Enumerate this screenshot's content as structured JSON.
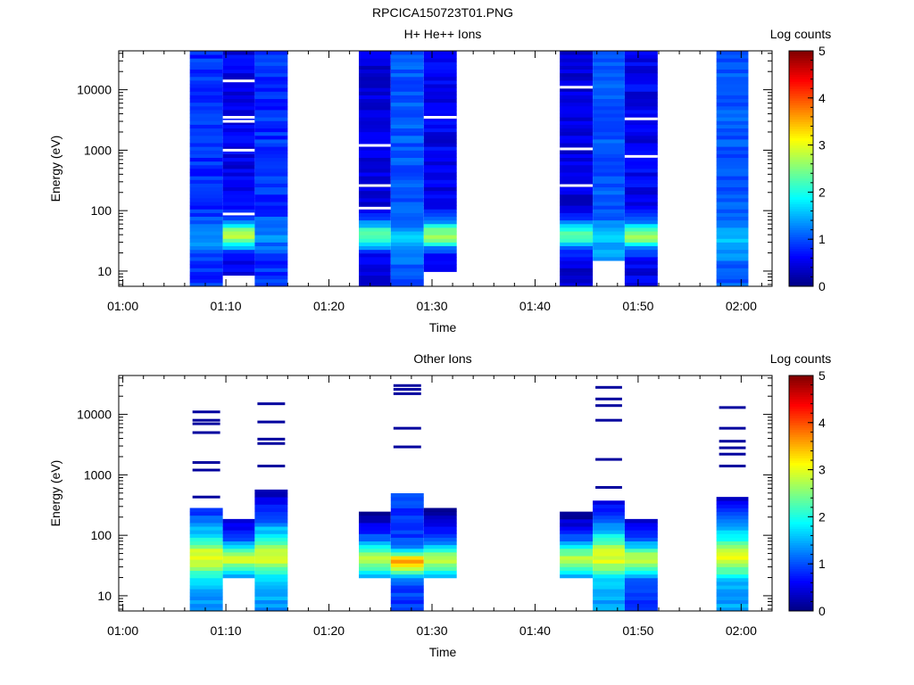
{
  "figure": {
    "filename": "RPCICA150723T01.PNG"
  },
  "chart_data": [
    {
      "type": "heatmap",
      "title": "H+ He++ Ions",
      "xlabel": "Time",
      "ylabel": "Energy (eV)",
      "colorbar_label": "Log counts",
      "x_tick_labels": [
        "01:00",
        "01:10",
        "01:20",
        "01:30",
        "01:40",
        "01:50",
        "02:00"
      ],
      "xlim": [
        "00:59.6",
        "02:03"
      ],
      "y_tick_labels": [
        "10",
        "100",
        "1000",
        "10000"
      ],
      "y_scale": "log",
      "ylim": [
        5.6,
        44000
      ],
      "colorbar_ticks": [
        "0",
        "1",
        "2",
        "3",
        "4",
        "5"
      ],
      "clim": [
        0,
        5
      ],
      "colormap": "jet",
      "columns": [
        {
          "t_start": "01:06.5",
          "t_end": "01:09.7",
          "profile": "hplus",
          "seed": 11
        },
        {
          "t_start": "01:09.7",
          "t_end": "01:12.8",
          "profile": "hplus_peak",
          "seed": 12,
          "gaps": [
            14000,
            3500,
            3000,
            1000,
            88
          ],
          "min_energy": 9
        },
        {
          "t_start": "01:12.8",
          "t_end": "01:16.0",
          "profile": "hplus",
          "seed": 13
        },
        {
          "t_start": "01:22.9",
          "t_end": "01:26.0",
          "profile": "hplus_dark",
          "seed": 21,
          "gaps": [
            1200,
            260,
            110
          ]
        },
        {
          "t_start": "01:26.0",
          "t_end": "01:29.2",
          "profile": "hplus_bright",
          "seed": 22
        },
        {
          "t_start": "01:29.2",
          "t_end": "01:32.4",
          "profile": "hplus_peak",
          "seed": 23,
          "gaps": [
            3500
          ],
          "min_energy": 9.5
        },
        {
          "t_start": "01:42.4",
          "t_end": "01:45.6",
          "profile": "hplus_dark",
          "seed": 31,
          "gaps": [
            11000,
            1050,
            260
          ]
        },
        {
          "t_start": "01:45.6",
          "t_end": "01:48.7",
          "profile": "hplus_bright",
          "seed": 32,
          "min_energy": 15
        },
        {
          "t_start": "01:48.7",
          "t_end": "01:51.9",
          "profile": "hplus_peak",
          "seed": 33,
          "gaps": [
            3300,
            790
          ]
        },
        {
          "t_start": "01:57.6",
          "t_end": "02:00.7",
          "profile": "hplus_bright",
          "seed": 41
        }
      ]
    },
    {
      "type": "heatmap",
      "title": "Other Ions",
      "xlabel": "Time",
      "ylabel": "Energy (eV)",
      "colorbar_label": "Log counts",
      "x_tick_labels": [
        "01:00",
        "01:10",
        "01:20",
        "01:30",
        "01:40",
        "01:50",
        "02:00"
      ],
      "xlim": [
        "00:59.6",
        "02:03"
      ],
      "y_tick_labels": [
        "10",
        "100",
        "1000",
        "10000"
      ],
      "y_scale": "log",
      "ylim": [
        5.6,
        44000
      ],
      "colorbar_ticks": [
        "0",
        "1",
        "2",
        "3",
        "4",
        "5"
      ],
      "clim": [
        0,
        5
      ],
      "colormap": "jet",
      "columns": [
        {
          "t_start": "01:06.5",
          "t_end": "01:09.7",
          "profile": "heavy",
          "seed": 51,
          "top": 290,
          "lines": [
            11000,
            8000,
            7000,
            5000,
            1600,
            1200,
            430
          ]
        },
        {
          "t_start": "01:09.7",
          "t_end": "01:12.8",
          "profile": "heavy_dim",
          "seed": 52,
          "top": 190,
          "min_energy": 20
        },
        {
          "t_start": "01:12.8",
          "t_end": "01:16.0",
          "profile": "heavy",
          "seed": 53,
          "top": 600,
          "lines": [
            15000,
            7500,
            3900,
            3300,
            1400
          ]
        },
        {
          "t_start": "01:22.9",
          "t_end": "01:26.0",
          "profile": "heavy_dim",
          "seed": 61,
          "top": 260,
          "min_energy": 20
        },
        {
          "t_start": "01:26.0",
          "t_end": "01:29.2",
          "profile": "heavy_hot",
          "seed": 62,
          "top": 520,
          "lines": [
            30000,
            26000,
            22000,
            5900,
            2900
          ]
        },
        {
          "t_start": "01:29.2",
          "t_end": "01:32.4",
          "profile": "heavy_dim",
          "seed": 63,
          "top": 300,
          "min_energy": 20
        },
        {
          "t_start": "01:42.4",
          "t_end": "01:45.6",
          "profile": "heavy_dim",
          "seed": 71,
          "top": 260,
          "min_energy": 20
        },
        {
          "t_start": "01:45.6",
          "t_end": "01:48.7",
          "profile": "heavy",
          "seed": 72,
          "top": 380,
          "lines": [
            28000,
            18000,
            14000,
            8000,
            1800,
            620
          ]
        },
        {
          "t_start": "01:48.7",
          "t_end": "01:51.9",
          "profile": "heavy_dim",
          "seed": 73,
          "top": 190
        },
        {
          "t_start": "01:57.6",
          "t_end": "02:00.7",
          "profile": "heavy",
          "seed": 81,
          "top": 450,
          "lines": [
            13000,
            5900,
            3600,
            2800,
            2200,
            1400
          ]
        }
      ]
    }
  ]
}
